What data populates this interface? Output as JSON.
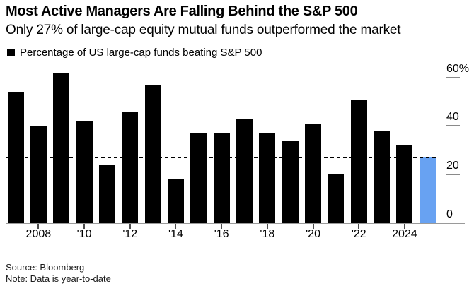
{
  "header": {
    "title": "Most Active Managers Are Falling Behind the S&P 500",
    "subtitle": "Only 27% of large-cap equity mutual funds outperformed the market"
  },
  "legend": {
    "label": "Percentage of US large-cap funds beating S&P 500",
    "swatch_color": "#000000"
  },
  "chart_data": {
    "type": "bar",
    "title": "Most Active Managers Are Falling Behind the S&P 500",
    "subtitle": "Only 27% of large-cap equity mutual funds outperformed the market",
    "series_name": "Percentage of US large-cap funds beating S&P 500",
    "unit": "%",
    "categories": [
      2007,
      2008,
      2009,
      2010,
      2011,
      2012,
      2013,
      2014,
      2015,
      2016,
      2017,
      2018,
      2019,
      2020,
      2021,
      2022,
      2023,
      2024,
      2025
    ],
    "values": [
      54,
      40,
      62,
      42,
      24,
      46,
      57,
      18,
      37,
      37,
      43,
      37,
      34,
      41,
      20,
      51,
      38,
      32,
      27
    ],
    "bar_color": "#000000",
    "highlight_index": 18,
    "highlight_color": "#68A2F2",
    "reference_line": {
      "value": 27,
      "style": "dashed",
      "color": "#000000"
    },
    "ylim": [
      0,
      65
    ],
    "grid": false,
    "legend_position": "top-left",
    "y_axis_side": "right",
    "yticks": [
      {
        "value": 0,
        "label": "0"
      },
      {
        "value": 20,
        "label": "20"
      },
      {
        "value": 40,
        "label": "40"
      },
      {
        "value": 60,
        "label": "60%"
      }
    ],
    "xticks": [
      {
        "year": 2008,
        "label": "2008"
      },
      {
        "year": 2010,
        "label": "'10"
      },
      {
        "year": 2012,
        "label": "'12"
      },
      {
        "year": 2014,
        "label": "'14"
      },
      {
        "year": 2016,
        "label": "'16"
      },
      {
        "year": 2018,
        "label": "'18"
      },
      {
        "year": 2020,
        "label": "'20"
      },
      {
        "year": 2022,
        "label": "'22"
      },
      {
        "year": 2024,
        "label": "2024"
      }
    ]
  },
  "footer": {
    "source": "Source: Bloomberg",
    "note": "Note: Data is year-to-date"
  }
}
